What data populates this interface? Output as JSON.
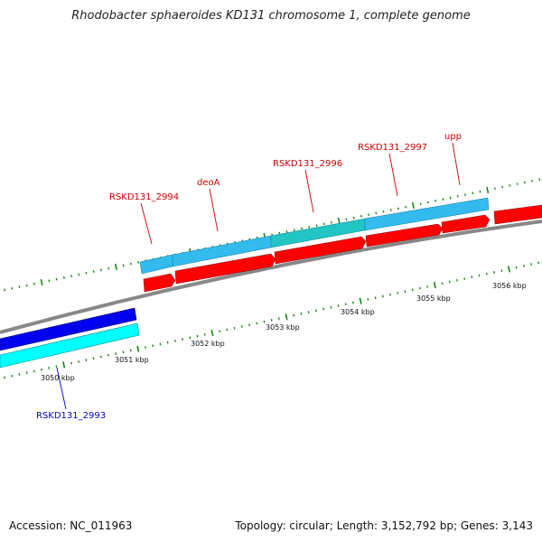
{
  "title": "Rhodobacter sphaeroides KD131 chromosome 1, complete genome",
  "accession": "Accession: NC_011963",
  "summary": "Topology: circular; Length: 3,152,792 bp; Genes: 3,143",
  "colors": {
    "forward_gene": "#ff0000",
    "forward_cds": "#33bbee",
    "forward_cds_alt": "#22c4c4",
    "reverse_gene": "#0000ee",
    "reverse_cds": "#00ffff",
    "backbone": "#888888",
    "tick": "#118811",
    "label_forward": "#cc0000",
    "label_reverse": "#0000cc"
  },
  "scale_ticks": [
    "3050 kbp",
    "3051 kbp",
    "3052 kbp",
    "3053 kbp",
    "3054 kbp",
    "3055 kbp",
    "3056 kbp"
  ],
  "genes": [
    {
      "label": "RSKD131_2993",
      "strand": "reverse"
    },
    {
      "label": "RSKD131_2994",
      "strand": "forward"
    },
    {
      "label": "deoA",
      "strand": "forward"
    },
    {
      "label": "RSKD131_2996",
      "strand": "forward"
    },
    {
      "label": "RSKD131_2997",
      "strand": "forward"
    },
    {
      "label": "upp",
      "strand": "forward"
    }
  ]
}
